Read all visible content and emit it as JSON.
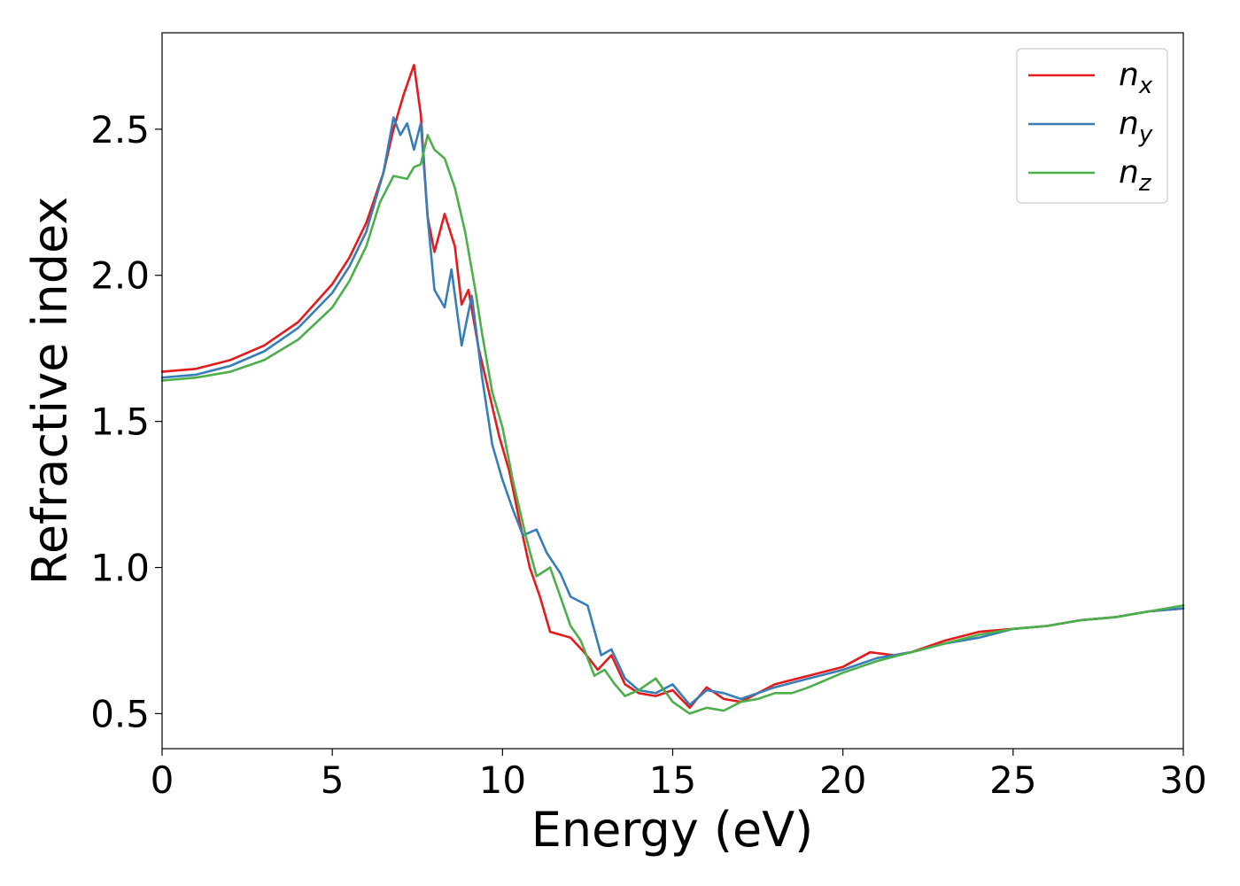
{
  "chart_data": {
    "type": "line",
    "xlabel": "Energy (eV)",
    "ylabel": "Refractive index",
    "xlim": [
      0,
      30
    ],
    "ylim": [
      0.38,
      2.83
    ],
    "xticks": [
      "0",
      "5",
      "10",
      "15",
      "20",
      "25",
      "30"
    ],
    "yticks": [
      "0.5",
      "1.0",
      "1.5",
      "2.0",
      "2.5"
    ],
    "grid": false,
    "legend_position": "top-right",
    "series": [
      {
        "name": "n",
        "subscript": "x",
        "color": "#e41a1c",
        "x": [
          0,
          1,
          2,
          3,
          4,
          5,
          5.5,
          6,
          6.5,
          6.8,
          7.1,
          7.4,
          7.6,
          7.8,
          8.0,
          8.3,
          8.6,
          8.8,
          9.0,
          9.3,
          9.6,
          9.9,
          10.2,
          10.5,
          10.8,
          11.1,
          11.4,
          11.7,
          12.0,
          12.4,
          12.8,
          13.2,
          13.6,
          14.0,
          14.5,
          15.0,
          15.5,
          16.0,
          16.5,
          17.0,
          17.5,
          18.0,
          19.0,
          20.0,
          20.8,
          21.5,
          22.0,
          23.0,
          24.0,
          25.0,
          26.0,
          27.0,
          28.0,
          29.0,
          30.0
        ],
        "y": [
          1.67,
          1.68,
          1.71,
          1.76,
          1.84,
          1.97,
          2.06,
          2.18,
          2.35,
          2.5,
          2.62,
          2.72,
          2.55,
          2.2,
          2.08,
          2.21,
          2.1,
          1.9,
          1.95,
          1.75,
          1.6,
          1.45,
          1.33,
          1.16,
          1.0,
          0.9,
          0.78,
          0.77,
          0.76,
          0.71,
          0.65,
          0.7,
          0.6,
          0.57,
          0.56,
          0.58,
          0.52,
          0.59,
          0.55,
          0.54,
          0.57,
          0.6,
          0.63,
          0.66,
          0.71,
          0.7,
          0.71,
          0.75,
          0.78,
          0.79,
          0.8,
          0.82,
          0.83,
          0.85,
          0.86
        ]
      },
      {
        "name": "n",
        "subscript": "y",
        "color": "#377eb8",
        "x": [
          0,
          1,
          2,
          3,
          4,
          5,
          5.5,
          6,
          6.5,
          6.8,
          7.0,
          7.2,
          7.4,
          7.6,
          7.8,
          8.0,
          8.3,
          8.5,
          8.8,
          9.1,
          9.4,
          9.7,
          10.0,
          10.3,
          10.6,
          11.0,
          11.3,
          11.7,
          12.0,
          12.5,
          12.9,
          13.2,
          13.6,
          14.0,
          14.5,
          15.0,
          15.5,
          16.0,
          16.5,
          17.0,
          17.5,
          18.0,
          19.0,
          20.0,
          21.0,
          22.0,
          23.0,
          24.0,
          25.0,
          26.0,
          27.0,
          28.0,
          29.0,
          30.0
        ],
        "y": [
          1.65,
          1.66,
          1.69,
          1.74,
          1.82,
          1.94,
          2.03,
          2.15,
          2.35,
          2.54,
          2.48,
          2.52,
          2.43,
          2.52,
          2.2,
          1.95,
          1.89,
          2.02,
          1.76,
          1.93,
          1.65,
          1.42,
          1.3,
          1.2,
          1.11,
          1.13,
          1.05,
          0.98,
          0.9,
          0.87,
          0.7,
          0.72,
          0.62,
          0.58,
          0.57,
          0.6,
          0.53,
          0.58,
          0.57,
          0.55,
          0.57,
          0.59,
          0.62,
          0.65,
          0.69,
          0.71,
          0.74,
          0.76,
          0.79,
          0.8,
          0.82,
          0.83,
          0.85,
          0.86
        ]
      },
      {
        "name": "n",
        "subscript": "z",
        "color": "#4daf4a",
        "x": [
          0,
          1,
          2,
          3,
          4,
          5,
          5.5,
          6,
          6.4,
          6.8,
          7.2,
          7.4,
          7.6,
          7.8,
          8.0,
          8.3,
          8.6,
          8.9,
          9.2,
          9.4,
          9.7,
          10.0,
          10.3,
          10.7,
          11.0,
          11.4,
          11.7,
          12.0,
          12.3,
          12.7,
          13.0,
          13.3,
          13.6,
          14.0,
          14.5,
          15.0,
          15.5,
          16.0,
          16.5,
          17.0,
          17.5,
          18.0,
          18.5,
          19.0,
          20.0,
          21.0,
          22.0,
          23.0,
          24.0,
          25.0,
          26.0,
          27.0,
          28.0,
          29.0,
          30.0
        ],
        "y": [
          1.64,
          1.65,
          1.67,
          1.71,
          1.78,
          1.89,
          1.98,
          2.1,
          2.25,
          2.34,
          2.33,
          2.37,
          2.38,
          2.48,
          2.43,
          2.4,
          2.3,
          2.15,
          1.95,
          1.8,
          1.6,
          1.48,
          1.3,
          1.1,
          0.97,
          1.0,
          0.9,
          0.8,
          0.75,
          0.63,
          0.65,
          0.6,
          0.56,
          0.58,
          0.62,
          0.54,
          0.5,
          0.52,
          0.51,
          0.54,
          0.55,
          0.57,
          0.57,
          0.59,
          0.64,
          0.68,
          0.71,
          0.74,
          0.77,
          0.79,
          0.8,
          0.82,
          0.83,
          0.85,
          0.87
        ]
      }
    ]
  }
}
